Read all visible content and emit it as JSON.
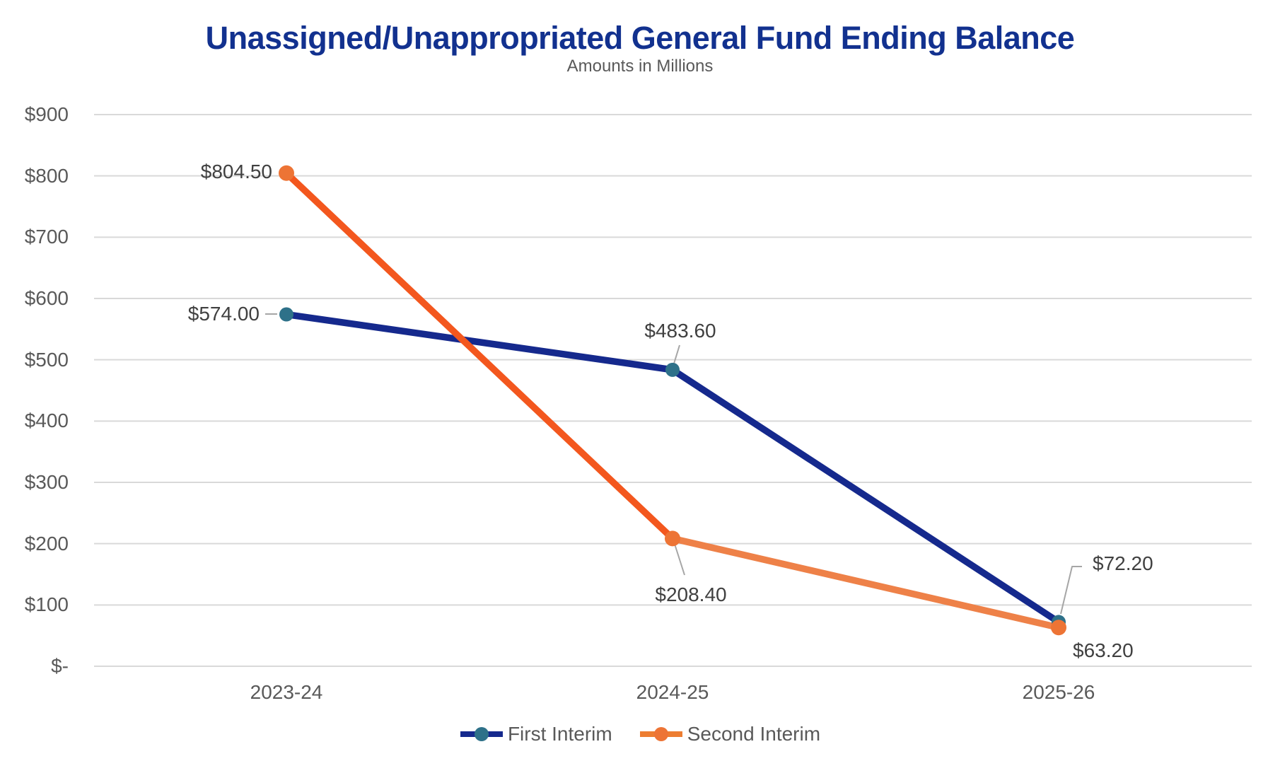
{
  "chart_data": {
    "type": "line",
    "title": "Unassigned/Unappropriated General Fund Ending Balance",
    "subtitle": "Amounts in Millions",
    "categories": [
      "2023-24",
      "2024-25",
      "2025-26"
    ],
    "y_axis": {
      "min": 0,
      "max": 900,
      "step": 100,
      "ticks": [
        {
          "label": "$900",
          "value": 900
        },
        {
          "label": "$800",
          "value": 800
        },
        {
          "label": "$700",
          "value": 700
        },
        {
          "label": "$600",
          "value": 600
        },
        {
          "label": "$500",
          "value": 500
        },
        {
          "label": "$400",
          "value": 400
        },
        {
          "label": "$300",
          "value": 300
        },
        {
          "label": "$200",
          "value": 200
        },
        {
          "label": "$100",
          "value": 100
        },
        {
          "label": "$-",
          "value": 0
        }
      ]
    },
    "grid": "horizontal",
    "legend_position": "bottom",
    "series": [
      {
        "name": "First Interim",
        "values": [
          574.0,
          483.6,
          72.2
        ],
        "point_labels": [
          "$574.00",
          "$483.60",
          "$72.20"
        ],
        "line_color": "#15298d",
        "marker_color": "#2e7189"
      },
      {
        "name": "Second Interim",
        "values": [
          804.5,
          208.4,
          63.2
        ],
        "point_labels": [
          "$804.50",
          "$208.40",
          "$63.20"
        ],
        "line_color": "#ed7d31",
        "segment_colors": [
          "#f3571e",
          "#ee8148"
        ],
        "marker_color": "#ed7435"
      }
    ],
    "colors": {
      "title_text": "#12318f",
      "subtitle_text": "#595959",
      "axis_text": "#595959",
      "data_label_text": "#404040",
      "gridline": "#d9d9d9",
      "leader_line": "#a6a6a6",
      "background": "#ffffff"
    }
  }
}
